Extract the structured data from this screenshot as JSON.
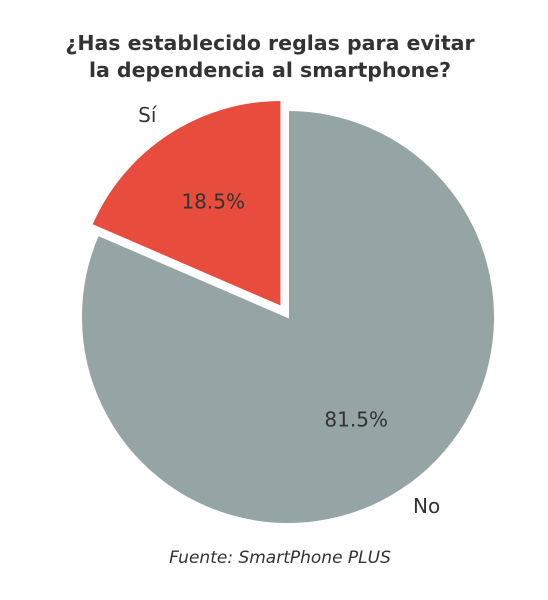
{
  "chart_data": {
    "type": "pie",
    "title_lines": [
      "¿Has establecido reglas para evitar",
      "la dependencia al smartphone?"
    ],
    "categories": [
      "Sí",
      "No"
    ],
    "values": [
      18.5,
      81.5
    ],
    "value_labels": [
      "18.5%",
      "81.5%"
    ],
    "colors": [
      "#e74c3c",
      "#95a5a6"
    ],
    "exploded": [
      "Sí"
    ],
    "start_angle": "top, clockwise",
    "source": "Fuente: SmartPhone PLUS"
  }
}
